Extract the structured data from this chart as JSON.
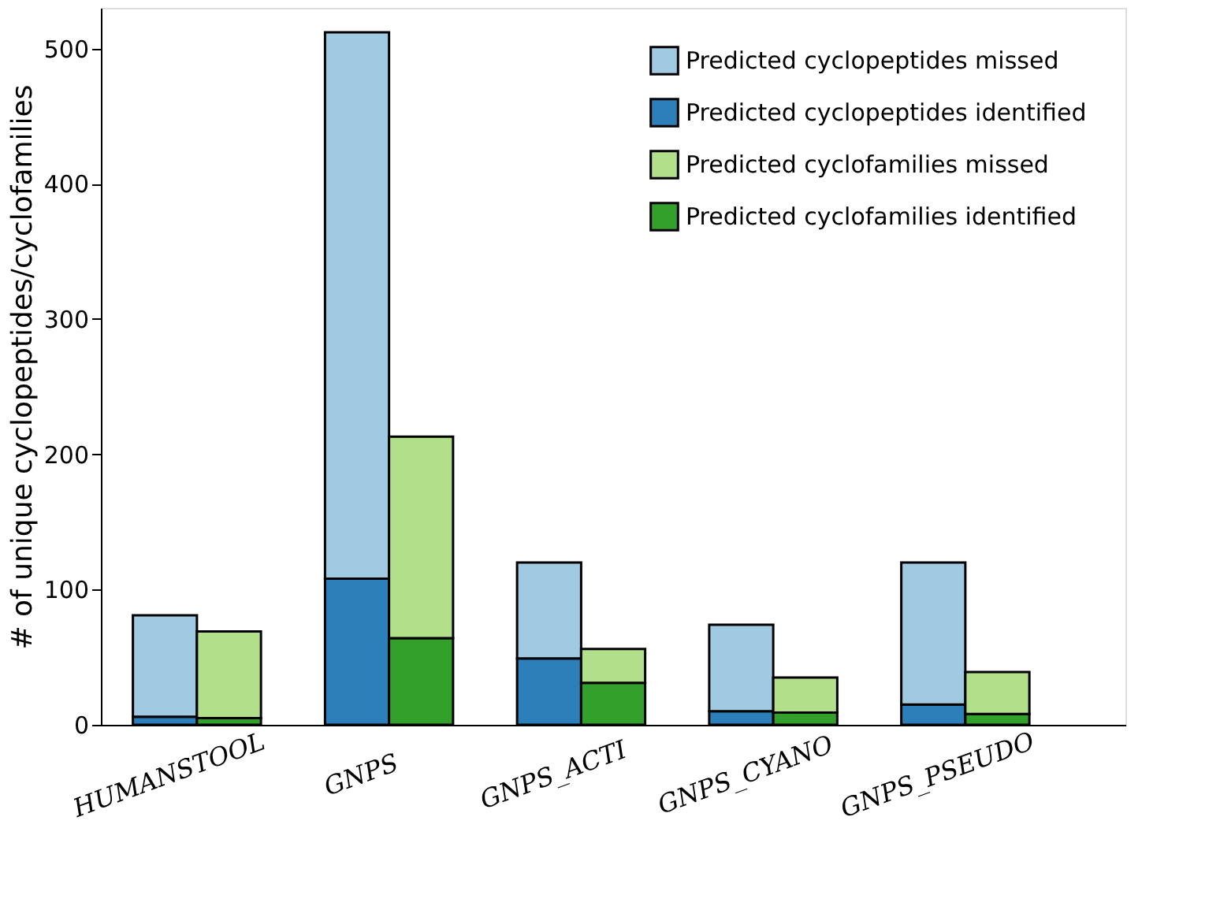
{
  "chart_data": {
    "type": "bar",
    "stacked": true,
    "ylabel": "# of unique cyclopeptides/cyclofamilies",
    "categories": [
      "HUMANSTOOL",
      null,
      null,
      "GNPS",
      null,
      null,
      "GNPS_ACTI",
      null,
      null,
      "GNPS_CYANO",
      null,
      null,
      "GNPS_PSEUDO",
      null,
      null
    ],
    "series": [
      {
        "name": "Predicted cyclopeptides identified",
        "color": "#2c7fb8",
        "values": [
          6,
          null,
          null,
          108,
          null,
          null,
          49,
          null,
          null,
          10,
          null,
          null,
          15,
          null,
          null
        ]
      },
      {
        "name": "Predicted cyclopeptides missed",
        "color": "#a0cae1",
        "values": [
          75,
          null,
          null,
          404,
          null,
          null,
          71,
          null,
          null,
          64,
          null,
          null,
          105,
          null,
          null
        ]
      },
      {
        "name": "Predicted cyclofamilies identified",
        "color": "#33a02c",
        "values": [
          null,
          5,
          null,
          null,
          64,
          null,
          null,
          31,
          null,
          null,
          9,
          null,
          null,
          8,
          null
        ]
      },
      {
        "name": "Predicted cyclofamilies missed",
        "color": "#b2df8a",
        "values": [
          null,
          64,
          null,
          null,
          149,
          null,
          null,
          25,
          null,
          null,
          26,
          null,
          null,
          31,
          null
        ]
      }
    ],
    "ylim": [
      0,
      530
    ],
    "yticks": [
      0,
      100,
      200,
      300,
      400,
      500
    ],
    "grid": false,
    "legend": "top right"
  }
}
